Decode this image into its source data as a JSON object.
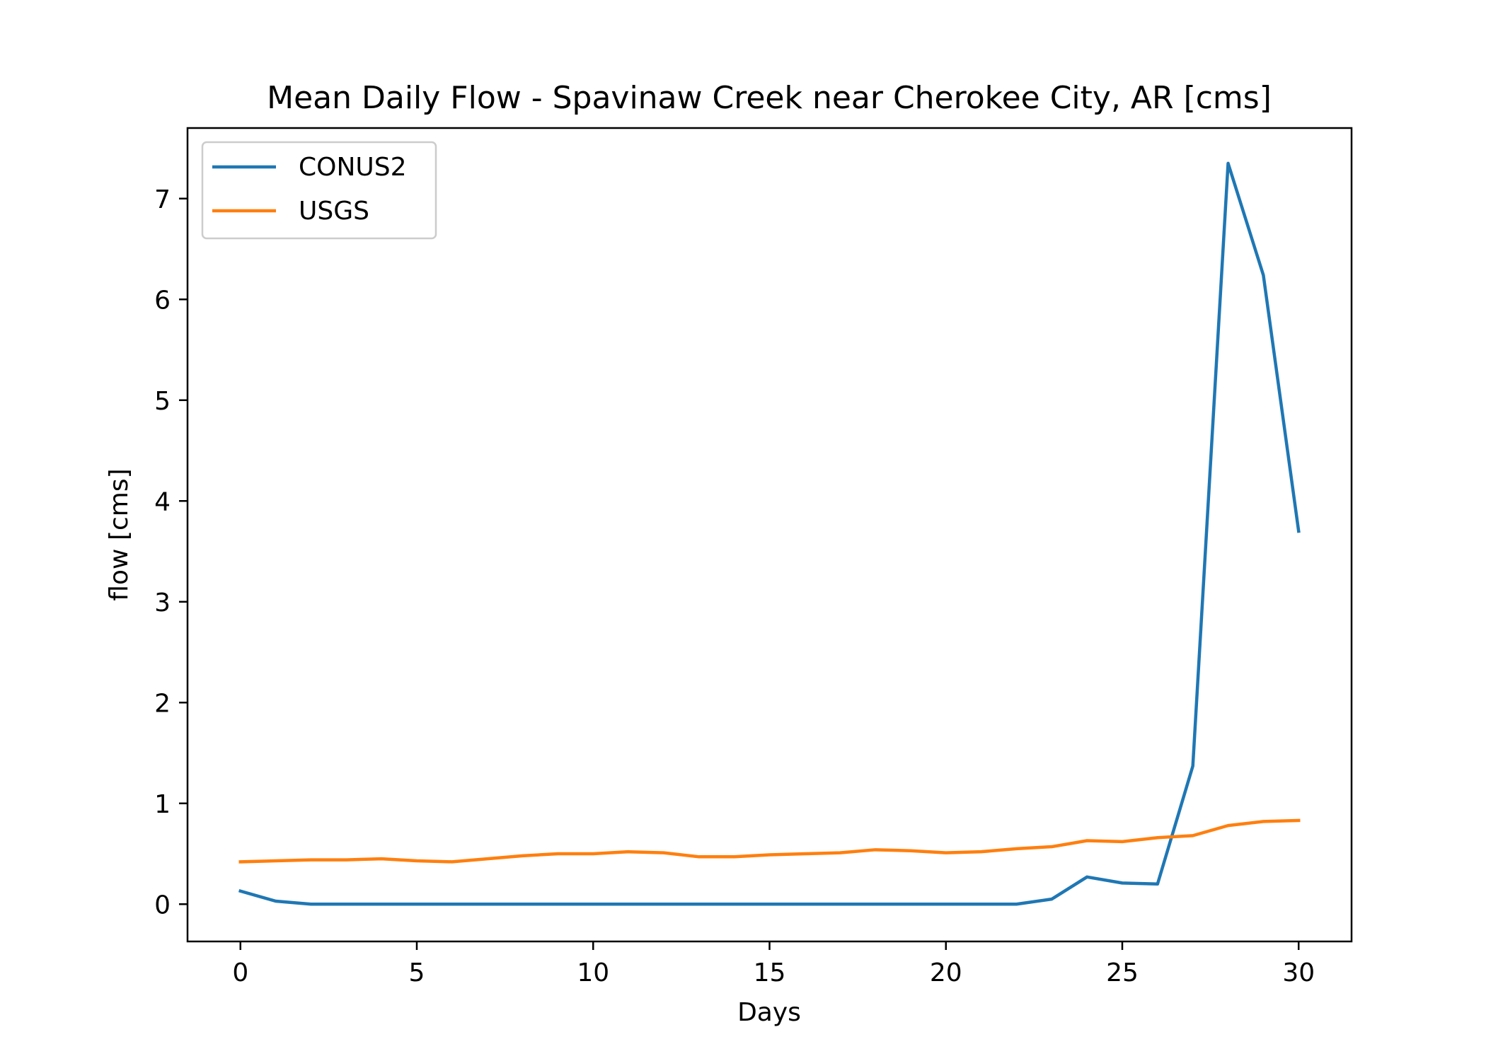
{
  "chart_data": {
    "type": "line",
    "title": "Mean Daily Flow - Spavinaw Creek near Cherokee City, AR [cms]",
    "xlabel": "Days",
    "ylabel": "flow [cms]",
    "xlim": [
      -1.5,
      31.5
    ],
    "ylim": [
      -0.37,
      7.7
    ],
    "xticks": [
      0,
      5,
      10,
      15,
      20,
      25,
      30
    ],
    "yticks": [
      0,
      1,
      2,
      3,
      4,
      5,
      6,
      7
    ],
    "grid": false,
    "legend_position": "upper-left",
    "x": [
      0,
      1,
      2,
      3,
      4,
      5,
      6,
      7,
      8,
      9,
      10,
      11,
      12,
      13,
      14,
      15,
      16,
      17,
      18,
      19,
      20,
      21,
      22,
      23,
      24,
      25,
      26,
      27,
      28,
      29,
      30
    ],
    "series": [
      {
        "name": "CONUS2",
        "color": "#1f77b4",
        "values": [
          0.13,
          0.03,
          0.0,
          0.0,
          0.0,
          0.0,
          0.0,
          0.0,
          0.0,
          0.0,
          0.0,
          0.0,
          0.0,
          0.0,
          0.0,
          0.0,
          0.0,
          0.0,
          0.0,
          0.0,
          0.0,
          0.0,
          0.0,
          0.05,
          0.27,
          0.21,
          0.2,
          1.37,
          7.35,
          6.24,
          3.7
        ]
      },
      {
        "name": "USGS",
        "color": "#ff7f0e",
        "values": [
          0.42,
          0.43,
          0.44,
          0.44,
          0.45,
          0.43,
          0.42,
          0.45,
          0.48,
          0.5,
          0.5,
          0.52,
          0.51,
          0.47,
          0.47,
          0.49,
          0.5,
          0.51,
          0.54,
          0.53,
          0.51,
          0.52,
          0.55,
          0.57,
          0.63,
          0.62,
          0.66,
          0.68,
          0.78,
          0.82,
          0.83
        ]
      }
    ]
  }
}
